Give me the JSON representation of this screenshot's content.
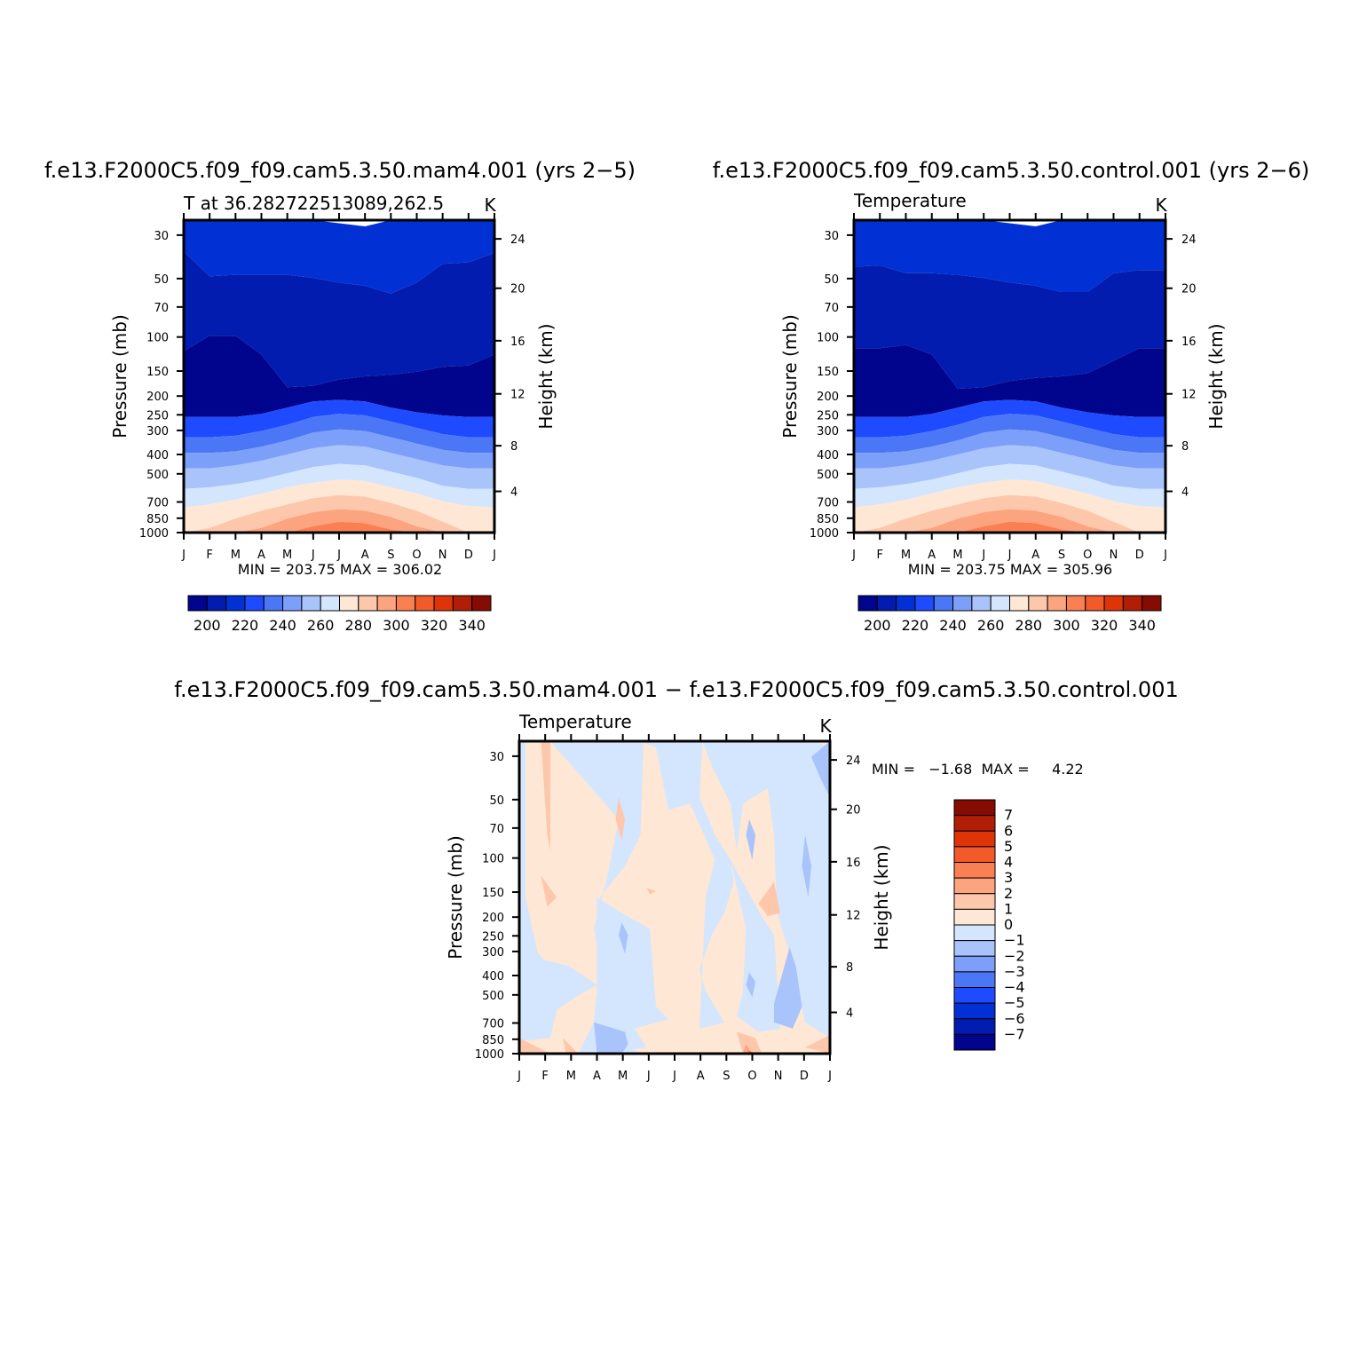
{
  "chart_data": [
    {
      "type": "heatmap",
      "title": "f.e13.F2000C5.f09_f09.cam5.3.50.mam4.001  (yrs 2−5)",
      "left_label": "T at 36.282722513089,262.5",
      "right_label": "K",
      "ylabel": "Pressure  (mb)",
      "ylabel_right": "Height  (km)",
      "x": [
        "J",
        "F",
        "M",
        "A",
        "M",
        "J",
        "J",
        "A",
        "S",
        "O",
        "N",
        "D",
        "J"
      ],
      "pressure_ticks": [
        "30",
        "50",
        "70",
        "100",
        "150",
        "200",
        "250",
        "300",
        "400",
        "500",
        "700",
        "850",
        "1000"
      ],
      "height_ticks": [
        "24",
        "20",
        "16",
        "12",
        "8",
        "4"
      ],
      "stats": "MIN = 203.75  MAX = 306.02",
      "colorbar_ticks": [
        "200",
        "220",
        "240",
        "260",
        "280",
        "300",
        "320",
        "340"
      ]
    },
    {
      "type": "heatmap",
      "title": "f.e13.F2000C5.f09_f09.cam5.3.50.control.001  (yrs 2−6)",
      "left_label": "Temperature",
      "right_label": "K",
      "ylabel": "Pressure  (mb)",
      "ylabel_right": "Height  (km)",
      "x": [
        "J",
        "F",
        "M",
        "A",
        "M",
        "J",
        "J",
        "A",
        "S",
        "O",
        "N",
        "D",
        "J"
      ],
      "pressure_ticks": [
        "30",
        "50",
        "70",
        "100",
        "150",
        "200",
        "250",
        "300",
        "400",
        "500",
        "700",
        "850",
        "1000"
      ],
      "height_ticks": [
        "24",
        "20",
        "16",
        "12",
        "8",
        "4"
      ],
      "stats": "MIN = 203.75  MAX = 305.96",
      "colorbar_ticks": [
        "200",
        "220",
        "240",
        "260",
        "280",
        "300",
        "320",
        "340"
      ]
    },
    {
      "type": "heatmap",
      "title": "f.e13.F2000C5.f09_f09.cam5.3.50.mam4.001  −  f.e13.F2000C5.f09_f09.cam5.3.50.control.001",
      "left_label": "Temperature",
      "right_label": "K",
      "ylabel": "Pressure  (mb)",
      "ylabel_right": "Height  (km)",
      "x": [
        "J",
        "F",
        "M",
        "A",
        "M",
        "J",
        "J",
        "A",
        "S",
        "O",
        "N",
        "D",
        "J"
      ],
      "pressure_ticks": [
        "30",
        "50",
        "70",
        "100",
        "150",
        "200",
        "250",
        "300",
        "400",
        "500",
        "700",
        "850",
        "1000"
      ],
      "height_ticks": [
        "24",
        "20",
        "16",
        "12",
        "8",
        "4"
      ],
      "stats": "MIN =   −1.68  MAX =     4.22",
      "colorbar_ticks": [
        "7",
        "6",
        "5",
        "4",
        "3",
        "2",
        "1",
        "0",
        "−1",
        "−2",
        "−3",
        "−4",
        "−5",
        "−6",
        "−7"
      ]
    }
  ],
  "colors": {
    "abs_levels": [
      "#01048c",
      "#021cb0",
      "#0131d4",
      "#1e4bff",
      "#4b77f6",
      "#7c9ffa",
      "#a9c3fb",
      "#d3e6fe",
      "#fee7d4",
      "#fdc7ab",
      "#fca37f",
      "#fa7f52",
      "#f35a29",
      "#de3407",
      "#b21e05",
      "#860b01"
    ],
    "diff_levels": [
      "#860b01",
      "#b21e05",
      "#de3407",
      "#f35a29",
      "#fa7f52",
      "#fca37f",
      "#fdc7ab",
      "#fee7d4",
      "#d3e6fe",
      "#a9c3fb",
      "#7c9ffa",
      "#4b77f6",
      "#1e4bff",
      "#0131d4",
      "#021cb0",
      "#01048c"
    ]
  }
}
